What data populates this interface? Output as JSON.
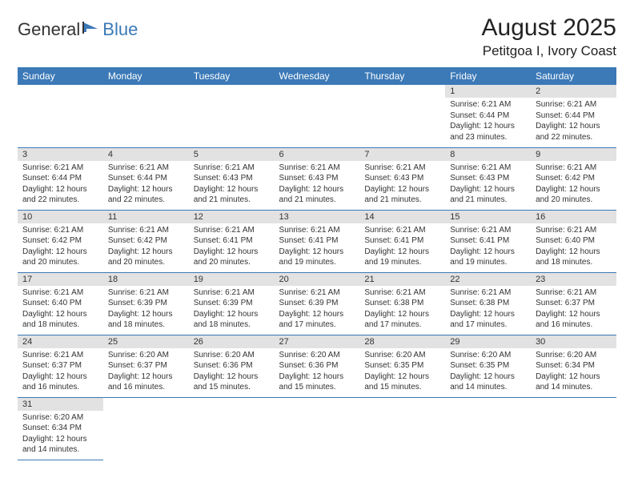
{
  "logo": {
    "general": "General",
    "blue": "Blue"
  },
  "title": "August 2025",
  "location": "Petitgoa I, Ivory Coast",
  "colors": {
    "header_bg": "#3b79b7",
    "header_text": "#ffffff",
    "daynum_bg": "#e2e2e2",
    "text": "#333333",
    "border": "#3b79b7"
  },
  "weekdays": [
    "Sunday",
    "Monday",
    "Tuesday",
    "Wednesday",
    "Thursday",
    "Friday",
    "Saturday"
  ],
  "weeks": [
    [
      null,
      null,
      null,
      null,
      null,
      {
        "n": "1",
        "sr": "Sunrise: 6:21 AM",
        "ss": "Sunset: 6:44 PM",
        "d1": "Daylight: 12 hours",
        "d2": "and 23 minutes."
      },
      {
        "n": "2",
        "sr": "Sunrise: 6:21 AM",
        "ss": "Sunset: 6:44 PM",
        "d1": "Daylight: 12 hours",
        "d2": "and 22 minutes."
      }
    ],
    [
      {
        "n": "3",
        "sr": "Sunrise: 6:21 AM",
        "ss": "Sunset: 6:44 PM",
        "d1": "Daylight: 12 hours",
        "d2": "and 22 minutes."
      },
      {
        "n": "4",
        "sr": "Sunrise: 6:21 AM",
        "ss": "Sunset: 6:44 PM",
        "d1": "Daylight: 12 hours",
        "d2": "and 22 minutes."
      },
      {
        "n": "5",
        "sr": "Sunrise: 6:21 AM",
        "ss": "Sunset: 6:43 PM",
        "d1": "Daylight: 12 hours",
        "d2": "and 21 minutes."
      },
      {
        "n": "6",
        "sr": "Sunrise: 6:21 AM",
        "ss": "Sunset: 6:43 PM",
        "d1": "Daylight: 12 hours",
        "d2": "and 21 minutes."
      },
      {
        "n": "7",
        "sr": "Sunrise: 6:21 AM",
        "ss": "Sunset: 6:43 PM",
        "d1": "Daylight: 12 hours",
        "d2": "and 21 minutes."
      },
      {
        "n": "8",
        "sr": "Sunrise: 6:21 AM",
        "ss": "Sunset: 6:43 PM",
        "d1": "Daylight: 12 hours",
        "d2": "and 21 minutes."
      },
      {
        "n": "9",
        "sr": "Sunrise: 6:21 AM",
        "ss": "Sunset: 6:42 PM",
        "d1": "Daylight: 12 hours",
        "d2": "and 20 minutes."
      }
    ],
    [
      {
        "n": "10",
        "sr": "Sunrise: 6:21 AM",
        "ss": "Sunset: 6:42 PM",
        "d1": "Daylight: 12 hours",
        "d2": "and 20 minutes."
      },
      {
        "n": "11",
        "sr": "Sunrise: 6:21 AM",
        "ss": "Sunset: 6:42 PM",
        "d1": "Daylight: 12 hours",
        "d2": "and 20 minutes."
      },
      {
        "n": "12",
        "sr": "Sunrise: 6:21 AM",
        "ss": "Sunset: 6:41 PM",
        "d1": "Daylight: 12 hours",
        "d2": "and 20 minutes."
      },
      {
        "n": "13",
        "sr": "Sunrise: 6:21 AM",
        "ss": "Sunset: 6:41 PM",
        "d1": "Daylight: 12 hours",
        "d2": "and 19 minutes."
      },
      {
        "n": "14",
        "sr": "Sunrise: 6:21 AM",
        "ss": "Sunset: 6:41 PM",
        "d1": "Daylight: 12 hours",
        "d2": "and 19 minutes."
      },
      {
        "n": "15",
        "sr": "Sunrise: 6:21 AM",
        "ss": "Sunset: 6:41 PM",
        "d1": "Daylight: 12 hours",
        "d2": "and 19 minutes."
      },
      {
        "n": "16",
        "sr": "Sunrise: 6:21 AM",
        "ss": "Sunset: 6:40 PM",
        "d1": "Daylight: 12 hours",
        "d2": "and 18 minutes."
      }
    ],
    [
      {
        "n": "17",
        "sr": "Sunrise: 6:21 AM",
        "ss": "Sunset: 6:40 PM",
        "d1": "Daylight: 12 hours",
        "d2": "and 18 minutes."
      },
      {
        "n": "18",
        "sr": "Sunrise: 6:21 AM",
        "ss": "Sunset: 6:39 PM",
        "d1": "Daylight: 12 hours",
        "d2": "and 18 minutes."
      },
      {
        "n": "19",
        "sr": "Sunrise: 6:21 AM",
        "ss": "Sunset: 6:39 PM",
        "d1": "Daylight: 12 hours",
        "d2": "and 18 minutes."
      },
      {
        "n": "20",
        "sr": "Sunrise: 6:21 AM",
        "ss": "Sunset: 6:39 PM",
        "d1": "Daylight: 12 hours",
        "d2": "and 17 minutes."
      },
      {
        "n": "21",
        "sr": "Sunrise: 6:21 AM",
        "ss": "Sunset: 6:38 PM",
        "d1": "Daylight: 12 hours",
        "d2": "and 17 minutes."
      },
      {
        "n": "22",
        "sr": "Sunrise: 6:21 AM",
        "ss": "Sunset: 6:38 PM",
        "d1": "Daylight: 12 hours",
        "d2": "and 17 minutes."
      },
      {
        "n": "23",
        "sr": "Sunrise: 6:21 AM",
        "ss": "Sunset: 6:37 PM",
        "d1": "Daylight: 12 hours",
        "d2": "and 16 minutes."
      }
    ],
    [
      {
        "n": "24",
        "sr": "Sunrise: 6:21 AM",
        "ss": "Sunset: 6:37 PM",
        "d1": "Daylight: 12 hours",
        "d2": "and 16 minutes."
      },
      {
        "n": "25",
        "sr": "Sunrise: 6:20 AM",
        "ss": "Sunset: 6:37 PM",
        "d1": "Daylight: 12 hours",
        "d2": "and 16 minutes."
      },
      {
        "n": "26",
        "sr": "Sunrise: 6:20 AM",
        "ss": "Sunset: 6:36 PM",
        "d1": "Daylight: 12 hours",
        "d2": "and 15 minutes."
      },
      {
        "n": "27",
        "sr": "Sunrise: 6:20 AM",
        "ss": "Sunset: 6:36 PM",
        "d1": "Daylight: 12 hours",
        "d2": "and 15 minutes."
      },
      {
        "n": "28",
        "sr": "Sunrise: 6:20 AM",
        "ss": "Sunset: 6:35 PM",
        "d1": "Daylight: 12 hours",
        "d2": "and 15 minutes."
      },
      {
        "n": "29",
        "sr": "Sunrise: 6:20 AM",
        "ss": "Sunset: 6:35 PM",
        "d1": "Daylight: 12 hours",
        "d2": "and 14 minutes."
      },
      {
        "n": "30",
        "sr": "Sunrise: 6:20 AM",
        "ss": "Sunset: 6:34 PM",
        "d1": "Daylight: 12 hours",
        "d2": "and 14 minutes."
      }
    ],
    [
      {
        "n": "31",
        "sr": "Sunrise: 6:20 AM",
        "ss": "Sunset: 6:34 PM",
        "d1": "Daylight: 12 hours",
        "d2": "and 14 minutes."
      },
      null,
      null,
      null,
      null,
      null,
      null
    ]
  ]
}
